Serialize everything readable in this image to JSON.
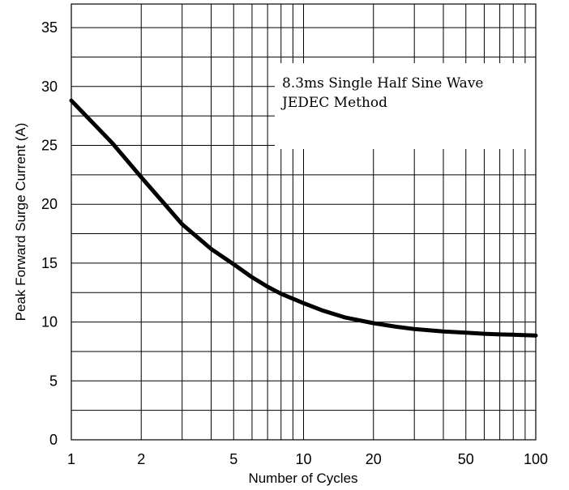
{
  "chart_data": {
    "type": "line",
    "xscale": "log",
    "xlabel": "Number of Cycles",
    "ylabel": "Peak Forward Surge Current (A)",
    "xlim": [
      1,
      100
    ],
    "ylim": [
      0,
      37
    ],
    "grid": true,
    "x_tick_labels": [
      {
        "value": 1,
        "label": "1"
      },
      {
        "value": 2,
        "label": "2"
      },
      {
        "value": 5,
        "label": "5"
      },
      {
        "value": 10,
        "label": "10"
      },
      {
        "value": 20,
        "label": "20"
      },
      {
        "value": 50,
        "label": "50"
      },
      {
        "value": 100,
        "label": "100"
      }
    ],
    "x_gridlines": [
      2,
      3,
      4,
      5,
      6,
      7,
      8,
      9,
      10,
      20,
      30,
      40,
      50,
      60,
      70,
      80,
      90
    ],
    "y_tick_labels": [
      {
        "value": 0,
        "label": "0"
      },
      {
        "value": 5,
        "label": "5"
      },
      {
        "value": 10,
        "label": "10"
      },
      {
        "value": 15,
        "label": "15"
      },
      {
        "value": 20,
        "label": "20"
      },
      {
        "value": 25,
        "label": "25"
      },
      {
        "value": 30,
        "label": "30"
      },
      {
        "value": 35,
        "label": "35"
      }
    ],
    "y_gridlines": [
      2.5,
      5,
      7.5,
      10,
      12.5,
      15,
      17.5,
      20,
      22.5,
      25,
      27.5,
      30,
      32.5,
      35
    ],
    "annotation": {
      "lines": [
        "8.3ms Single Half Sine Wave",
        "JEDEC Method"
      ]
    },
    "series": [
      {
        "x": [
          1,
          1.5,
          2,
          2.5,
          3,
          4,
          5,
          6,
          7,
          8,
          10,
          12,
          15,
          20,
          25,
          30,
          40,
          50,
          60,
          70,
          80,
          100
        ],
        "y": [
          28.8,
          25.2,
          22.3,
          20.1,
          18.3,
          16.2,
          14.9,
          13.8,
          13.0,
          12.4,
          11.6,
          11.0,
          10.4,
          9.9,
          9.6,
          9.4,
          9.2,
          9.1,
          9.0,
          8.95,
          8.92,
          8.85
        ]
      }
    ]
  }
}
